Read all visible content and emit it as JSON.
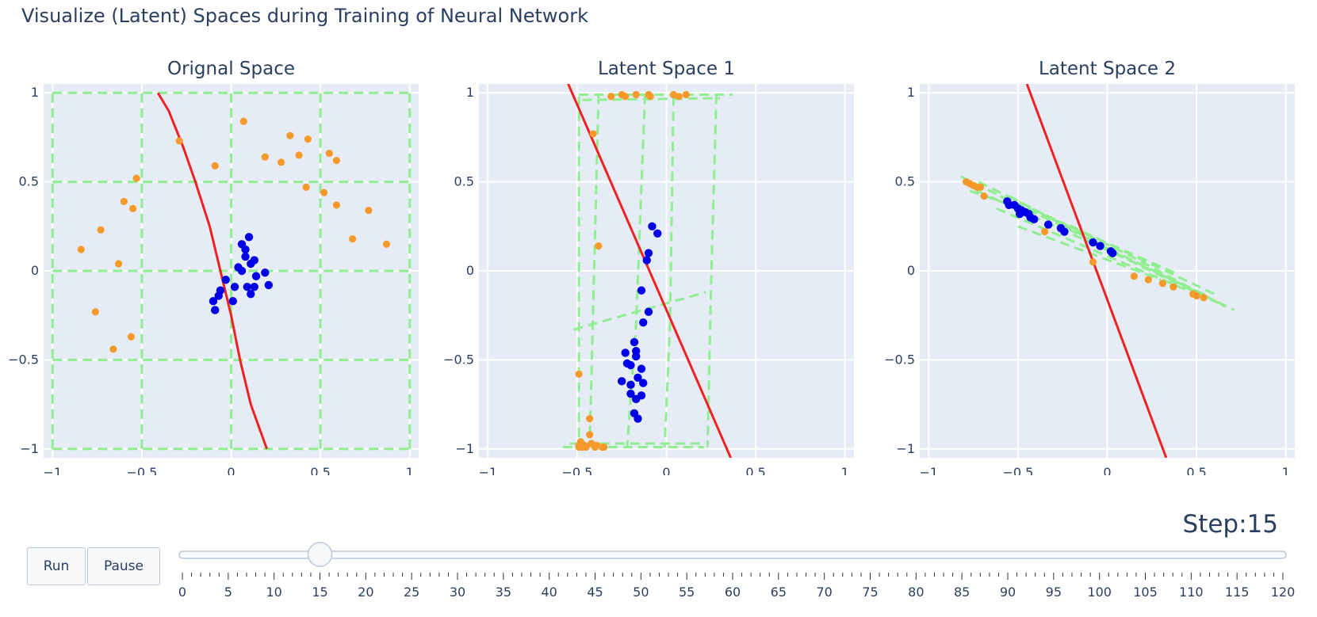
{
  "title": "Visualize (Latent) Spaces during Training of Neural Network",
  "controls": {
    "run_label": "Run",
    "pause_label": "Pause",
    "step_prefix": "Step:",
    "step_value": 15
  },
  "slider": {
    "min": 0,
    "max": 120,
    "step": 1,
    "value": 15,
    "labels": [
      "0",
      "5",
      "10",
      "15",
      "20",
      "25",
      "30",
      "35",
      "40",
      "45",
      "50",
      "55",
      "60",
      "65",
      "70",
      "75",
      "80",
      "85",
      "90",
      "95",
      "100",
      "105",
      "110",
      "115",
      "120"
    ]
  },
  "colors": {
    "class_a": "#f59a2a",
    "class_b": "#0000e6",
    "boundary": "#ee2222",
    "grid_warp": "#90ee90",
    "plot_bg": "#e5ecf6"
  },
  "chart_data": [
    {
      "type": "scatter",
      "title": "Orignal Space",
      "xlim": [
        -1.05,
        1.05
      ],
      "ylim": [
        -1.05,
        1.05
      ],
      "xticks": [
        -1,
        -0.5,
        0,
        0.5,
        1
      ],
      "yticks": [
        -1,
        -0.5,
        0,
        0.5,
        1
      ],
      "xticklabels": [
        "−1",
        "−0.5",
        "0",
        "0.5",
        "1"
      ],
      "yticklabels": [
        "−1",
        "−0.5",
        "0",
        "0.5",
        "1"
      ],
      "series": [
        {
          "color_key": "class_a",
          "points": [
            [
              0.07,
              0.84
            ],
            [
              -0.29,
              0.73
            ],
            [
              -0.09,
              0.59
            ],
            [
              0.33,
              0.76
            ],
            [
              0.43,
              0.74
            ],
            [
              0.19,
              0.64
            ],
            [
              0.28,
              0.61
            ],
            [
              0.38,
              0.65
            ],
            [
              0.55,
              0.66
            ],
            [
              0.59,
              0.62
            ],
            [
              -0.53,
              0.52
            ],
            [
              -0.6,
              0.39
            ],
            [
              -0.55,
              0.35
            ],
            [
              0.42,
              0.47
            ],
            [
              0.52,
              0.44
            ],
            [
              -0.73,
              0.23
            ],
            [
              0.59,
              0.37
            ],
            [
              0.77,
              0.34
            ],
            [
              -0.84,
              0.12
            ],
            [
              0.68,
              0.18
            ],
            [
              0.87,
              0.15
            ],
            [
              -0.63,
              0.04
            ],
            [
              -0.76,
              -0.23
            ],
            [
              -0.56,
              -0.37
            ],
            [
              -0.66,
              -0.44
            ]
          ]
        },
        {
          "color_key": "class_b",
          "points": [
            [
              0.1,
              0.19
            ],
            [
              0.06,
              0.15
            ],
            [
              0.08,
              0.12
            ],
            [
              0.08,
              0.08
            ],
            [
              0.13,
              0.06
            ],
            [
              0.11,
              0.04
            ],
            [
              0.04,
              0.02
            ],
            [
              0.06,
              0.0
            ],
            [
              0.19,
              -0.01
            ],
            [
              0.14,
              -0.03
            ],
            [
              -0.03,
              -0.05
            ],
            [
              0.02,
              -0.09
            ],
            [
              0.09,
              -0.09
            ],
            [
              0.13,
              -0.09
            ],
            [
              0.21,
              -0.08
            ],
            [
              -0.06,
              -0.11
            ],
            [
              0.11,
              -0.13
            ],
            [
              -0.07,
              -0.14
            ],
            [
              -0.1,
              -0.17
            ],
            [
              0.01,
              -0.17
            ],
            [
              -0.09,
              -0.22
            ]
          ]
        }
      ],
      "boundary": [
        [
          -0.41,
          1.0
        ],
        [
          -0.35,
          0.9
        ],
        [
          -0.27,
          0.7
        ],
        [
          -0.2,
          0.5
        ],
        [
          -0.12,
          0.25
        ],
        [
          -0.06,
          0.0
        ],
        [
          0.0,
          -0.25
        ],
        [
          0.05,
          -0.5
        ],
        [
          0.11,
          -0.75
        ],
        [
          0.2,
          -1.0
        ]
      ],
      "grid_lines": [
        [
          [
            -1,
            -1
          ],
          [
            -1,
            1
          ]
        ],
        [
          [
            -0.5,
            -1
          ],
          [
            -0.5,
            1
          ]
        ],
        [
          [
            0,
            -1
          ],
          [
            0,
            1
          ]
        ],
        [
          [
            0.5,
            -1
          ],
          [
            0.5,
            1
          ]
        ],
        [
          [
            1,
            -1
          ],
          [
            1,
            1
          ]
        ],
        [
          [
            -1,
            -1
          ],
          [
            1,
            -1
          ]
        ],
        [
          [
            -1,
            -0.5
          ],
          [
            1,
            -0.5
          ]
        ],
        [
          [
            -1,
            0
          ],
          [
            1,
            0
          ]
        ],
        [
          [
            -1,
            0.5
          ],
          [
            1,
            0.5
          ]
        ],
        [
          [
            -1,
            1
          ],
          [
            1,
            1
          ]
        ]
      ]
    },
    {
      "type": "scatter",
      "title": "Latent Space 1",
      "xlim": [
        -1.05,
        1.05
      ],
      "ylim": [
        -1.05,
        1.05
      ],
      "xticks": [
        -1,
        -0.5,
        0,
        0.5,
        1
      ],
      "yticks": [
        -1,
        -0.5,
        0,
        0.5,
        1
      ],
      "xticklabels": [
        "−1",
        "−0.5",
        "0",
        "0.5",
        "1"
      ],
      "yticklabels": [
        "−1",
        "−0.5",
        "0",
        "0.5",
        "1"
      ],
      "series": [
        {
          "color_key": "class_a",
          "points": [
            [
              -0.31,
              0.98
            ],
            [
              -0.25,
              0.99
            ],
            [
              -0.23,
              0.98
            ],
            [
              -0.17,
              0.99
            ],
            [
              -0.1,
              0.99
            ],
            [
              -0.09,
              0.98
            ],
            [
              0.04,
              0.99
            ],
            [
              0.07,
              0.98
            ],
            [
              0.11,
              0.99
            ],
            [
              -0.41,
              0.77
            ],
            [
              -0.38,
              0.14
            ],
            [
              -0.49,
              -0.58
            ],
            [
              -0.43,
              -0.83
            ],
            [
              -0.43,
              -0.92
            ],
            [
              -0.48,
              -0.96
            ],
            [
              -0.49,
              -0.98
            ],
            [
              -0.47,
              -0.99
            ],
            [
              -0.46,
              -0.98
            ],
            [
              -0.42,
              -0.97
            ],
            [
              -0.4,
              -0.99
            ],
            [
              -0.36,
              -0.99
            ],
            [
              -0.35,
              -0.99
            ],
            [
              -0.49,
              -0.99
            ],
            [
              -0.45,
              -0.99
            ],
            [
              -0.39,
              -0.98
            ]
          ]
        },
        {
          "color_key": "class_b",
          "points": [
            [
              -0.08,
              0.25
            ],
            [
              -0.05,
              0.21
            ],
            [
              -0.1,
              0.1
            ],
            [
              -0.11,
              0.06
            ],
            [
              -0.14,
              -0.11
            ],
            [
              -0.13,
              -0.29
            ],
            [
              -0.1,
              -0.23
            ],
            [
              -0.18,
              -0.4
            ],
            [
              -0.23,
              -0.46
            ],
            [
              -0.17,
              -0.45
            ],
            [
              -0.17,
              -0.48
            ],
            [
              -0.22,
              -0.52
            ],
            [
              -0.2,
              -0.53
            ],
            [
              -0.14,
              -0.55
            ],
            [
              -0.16,
              -0.6
            ],
            [
              -0.25,
              -0.62
            ],
            [
              -0.13,
              -0.63
            ],
            [
              -0.2,
              -0.64
            ],
            [
              -0.2,
              -0.69
            ],
            [
              -0.14,
              -0.7
            ],
            [
              -0.17,
              -0.72
            ],
            [
              -0.18,
              -0.8
            ],
            [
              -0.16,
              -0.83
            ]
          ]
        }
      ],
      "boundary": [
        [
          -0.55,
          1.05
        ],
        [
          0.36,
          -1.05
        ]
      ],
      "grid_lines": [
        [
          [
            -0.49,
            0.98
          ],
          [
            -0.49,
            -0.99
          ]
        ],
        [
          [
            -0.38,
            0.99
          ],
          [
            -0.43,
            -0.99
          ]
        ],
        [
          [
            -0.12,
            0.99
          ],
          [
            -0.17,
            -0.3
          ],
          [
            -0.22,
            -0.99
          ]
        ],
        [
          [
            0.04,
            0.98
          ],
          [
            0.02,
            -0.3
          ],
          [
            -0.01,
            -0.99
          ]
        ],
        [
          [
            0.28,
            0.99
          ],
          [
            0.25,
            -0.08
          ],
          [
            0.23,
            -0.99
          ]
        ],
        [
          [
            -0.49,
            0.99
          ],
          [
            0.37,
            0.99
          ]
        ],
        [
          [
            -0.47,
            0.96
          ],
          [
            0.3,
            0.97
          ]
        ],
        [
          [
            -0.52,
            -0.33
          ],
          [
            0.22,
            -0.12
          ]
        ],
        [
          [
            -0.58,
            -0.99
          ],
          [
            0.21,
            -0.99
          ]
        ],
        [
          [
            -0.54,
            -0.97
          ],
          [
            0.22,
            -0.97
          ]
        ]
      ]
    },
    {
      "type": "scatter",
      "title": "Latent Space 2",
      "xlim": [
        -1.05,
        1.05
      ],
      "ylim": [
        -1.05,
        1.05
      ],
      "xticks": [
        -1,
        -0.5,
        0,
        0.5,
        1
      ],
      "yticks": [
        -1,
        -0.5,
        0,
        0.5,
        1
      ],
      "xticklabels": [
        "−1",
        "−0.5",
        "0",
        "0.5",
        "1"
      ],
      "yticklabels": [
        "−1",
        "−0.5",
        "0",
        "0.5",
        "1"
      ],
      "series": [
        {
          "color_key": "class_a",
          "points": [
            [
              -0.79,
              0.5
            ],
            [
              -0.77,
              0.49
            ],
            [
              -0.75,
              0.48
            ],
            [
              -0.73,
              0.47
            ],
            [
              -0.71,
              0.47
            ],
            [
              -0.69,
              0.42
            ],
            [
              -0.35,
              0.22
            ],
            [
              -0.08,
              0.05
            ],
            [
              0.15,
              -0.03
            ],
            [
              0.23,
              -0.05
            ],
            [
              0.31,
              -0.07
            ],
            [
              0.37,
              -0.09
            ],
            [
              0.48,
              -0.13
            ],
            [
              0.5,
              -0.14
            ],
            [
              0.54,
              -0.15
            ]
          ]
        },
        {
          "color_key": "class_b",
          "points": [
            [
              -0.56,
              0.39
            ],
            [
              -0.55,
              0.37
            ],
            [
              -0.52,
              0.37
            ],
            [
              -0.5,
              0.35
            ],
            [
              -0.48,
              0.34
            ],
            [
              -0.49,
              0.32
            ],
            [
              -0.46,
              0.33
            ],
            [
              -0.44,
              0.32
            ],
            [
              -0.43,
              0.3
            ],
            [
              -0.41,
              0.29
            ],
            [
              -0.33,
              0.26
            ],
            [
              -0.26,
              0.24
            ],
            [
              -0.24,
              0.22
            ],
            [
              -0.08,
              0.16
            ],
            [
              -0.04,
              0.14
            ],
            [
              0.02,
              0.11
            ],
            [
              0.03,
              0.1
            ]
          ]
        }
      ],
      "boundary": [
        [
          -0.45,
          1.05
        ],
        [
          0.33,
          -1.05
        ]
      ],
      "grid_lines": [
        [
          [
            -0.82,
            0.53
          ],
          [
            0.71,
            -0.22
          ]
        ],
        [
          [
            -0.73,
            0.45
          ],
          [
            0.56,
            -0.14
          ]
        ],
        [
          [
            -0.62,
            0.35
          ],
          [
            0.45,
            -0.11
          ]
        ],
        [
          [
            -0.77,
            0.45
          ],
          [
            -0.2,
            0.25
          ],
          [
            0.6,
            -0.13
          ]
        ],
        [
          [
            -0.55,
            0.42
          ],
          [
            0.2,
            0.02
          ],
          [
            0.62,
            -0.18
          ]
        ],
        [
          [
            -0.72,
            0.5
          ],
          [
            -0.4,
            0.34
          ],
          [
            0.1,
            0.1
          ],
          [
            0.66,
            -0.2
          ]
        ],
        [
          [
            -0.5,
            0.25
          ],
          [
            0.3,
            -0.05
          ]
        ],
        [
          [
            -0.6,
            0.42
          ],
          [
            0.4,
            -0.02
          ]
        ]
      ]
    }
  ]
}
